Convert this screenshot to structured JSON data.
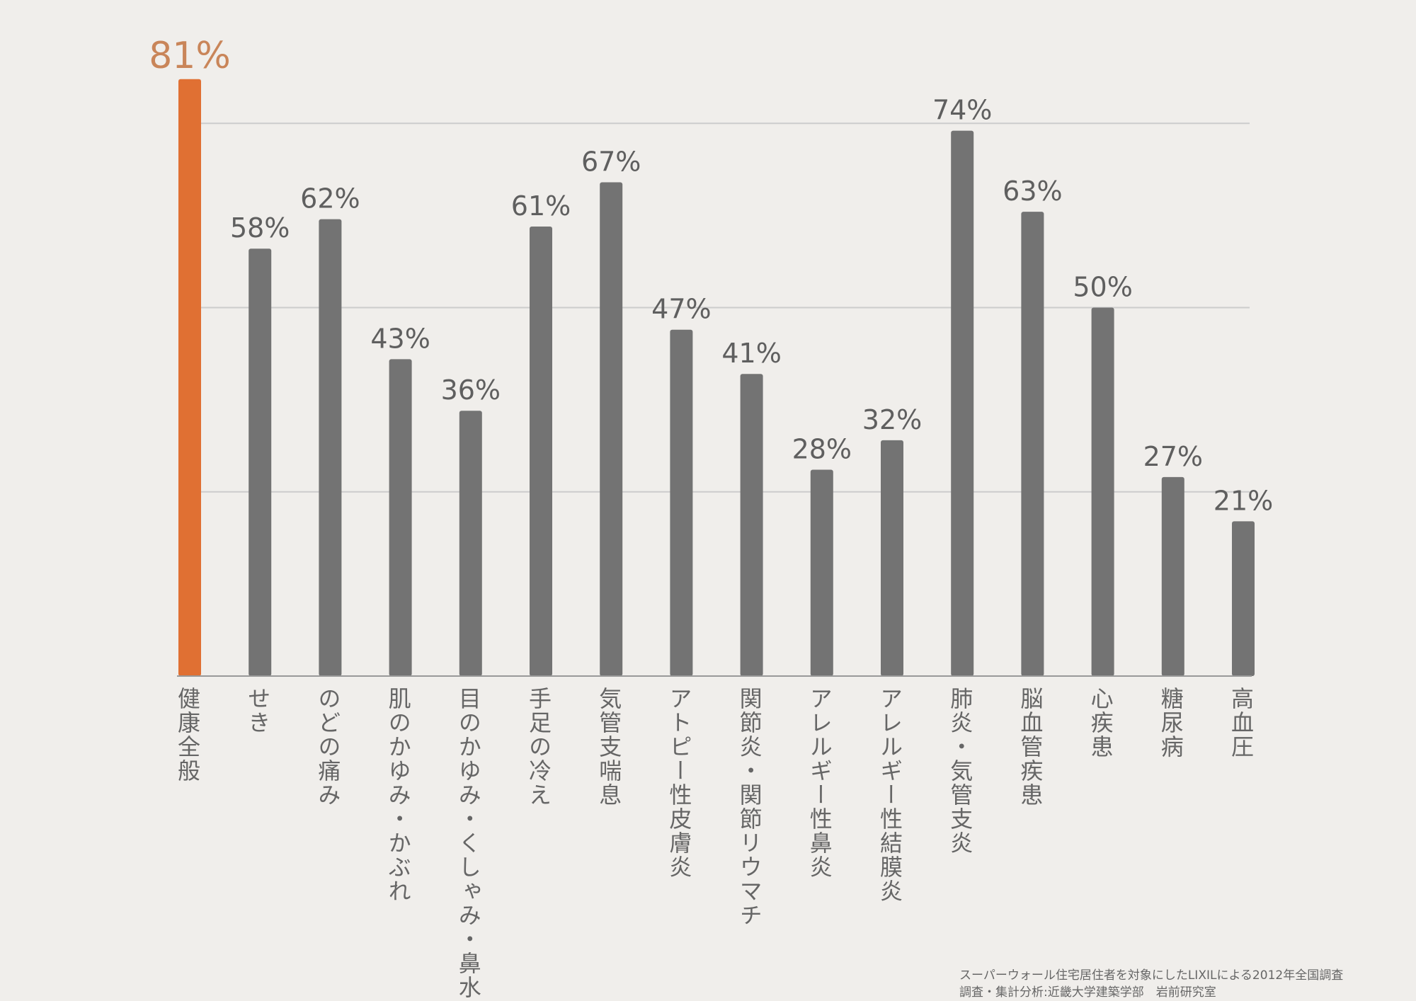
{
  "chart_data": {
    "type": "bar",
    "categories": [
      "健康全般",
      "せき",
      "のどの痛み",
      "肌のかゆみ・かぶれ",
      "目のかゆみ・くしゃみ・鼻水",
      "手足の冷え",
      "気管支喘息",
      "アトピー性皮膚炎",
      "関節炎・関節リウマチ",
      "アレルギー性鼻炎",
      "アレルギー性結膜炎",
      "肺炎・気管支炎",
      "脳血管疾患",
      "心疾患",
      "糖尿病",
      "高血圧"
    ],
    "values": [
      81,
      58,
      62,
      43,
      36,
      61,
      67,
      47,
      41,
      28,
      32,
      74,
      63,
      50,
      27,
      21
    ],
    "value_labels": [
      "81%",
      "58%",
      "62%",
      "43%",
      "36%",
      "61%",
      "67%",
      "47%",
      "41%",
      "28%",
      "32%",
      "74%",
      "63%",
      "50%",
      "27%",
      "21%"
    ],
    "highlight_index": 0,
    "ylim": [
      0,
      100
    ],
    "gridlines": [
      25,
      50,
      75
    ],
    "grid": true,
    "colors": {
      "highlight_bar": "#e07033",
      "highlight_label": "#c98559",
      "bar": "#737373",
      "label": "#5f5f5f",
      "gridline": "#cccccc",
      "axis": "#999999"
    }
  },
  "source": {
    "line1": "スーパーウォール住宅居住者を対象にしたLIXILによる2012年全国調査",
    "line2": "調査・集計分析:近畿大学建築学部　岩前研究室"
  }
}
